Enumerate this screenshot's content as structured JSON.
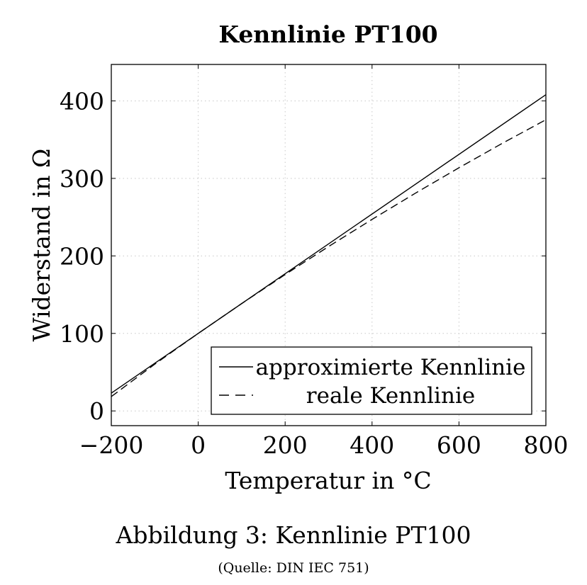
{
  "chart_data": {
    "type": "line",
    "title": "Kennlinie PT100",
    "xlabel": "Temperatur in °C",
    "ylabel": "Widerstand in Ω",
    "xlim": [
      -200,
      800
    ],
    "ylim": [
      -19,
      447
    ],
    "xticks": [
      -200,
      0,
      200,
      400,
      600,
      800
    ],
    "xtick_labels": [
      "−200",
      "0",
      "200",
      "400",
      "600",
      "800"
    ],
    "yticks": [
      0,
      100,
      200,
      300,
      400
    ],
    "ytick_labels": [
      "0",
      "100",
      "200",
      "300",
      "400"
    ],
    "grid": true,
    "legend_position": "bottom-right",
    "series": [
      {
        "name": "approximierte Kennlinie",
        "style": "solid",
        "x": [
          -200,
          800
        ],
        "y": [
          23.0,
          408.0
        ]
      },
      {
        "name": "reale Kennlinie",
        "style": "dashed",
        "x": [
          -200,
          -100,
          0,
          100,
          200,
          300,
          400,
          500,
          600,
          700,
          800
        ],
        "y": [
          18.5,
          60.3,
          100.0,
          138.5,
          175.9,
          212.1,
          247.1,
          281.0,
          313.7,
          345.3,
          375.7
        ]
      }
    ]
  },
  "figure_caption": "Abbildung 3: Kennlinie PT100",
  "source_note": "(Quelle: DIN IEC 751)"
}
